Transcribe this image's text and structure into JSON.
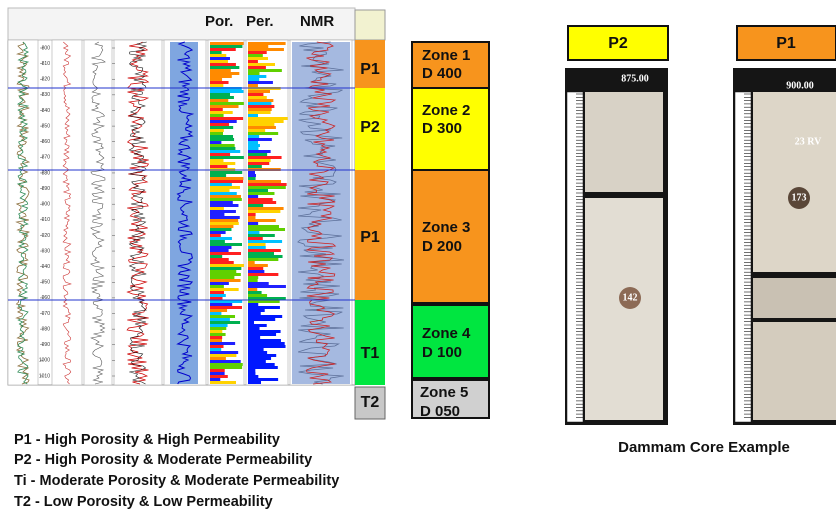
{
  "log": {
    "tracks": [
      "Por.",
      "Per.",
      "NMR"
    ],
    "depths": [
      800,
      810,
      820,
      830,
      840,
      850,
      860,
      870,
      880,
      890,
      900,
      910,
      920,
      930,
      940,
      950,
      960,
      970,
      980,
      990,
      1000,
      1010
    ],
    "facies": [
      "P1",
      "P2",
      "P1",
      "T1",
      "T2"
    ]
  },
  "zones": [
    {
      "name": "Zone 1",
      "depth": "D 400"
    },
    {
      "name": "Zone 2",
      "depth": "D 300"
    },
    {
      "name": "Zone 3",
      "depth": "D 200"
    },
    {
      "name": "Zone 4",
      "depth": "D 100"
    },
    {
      "name": "Zone 5",
      "depth": "D 050"
    }
  ],
  "legend": [
    "P1 - High Porosity & High Permeability",
    "P2 - High Porosity & Moderate Permeability",
    "Ti - Moderate Porosity & Moderate Permeability",
    "T2 - Low Porosity & Low Permeability"
  ],
  "cores": [
    {
      "facies": "P2",
      "depth": "875.00",
      "sample": "142"
    },
    {
      "facies": "P1",
      "depth": "900.00",
      "sample": "173",
      "mark": "23 RV"
    }
  ],
  "caption": "Dammam Core Example"
}
